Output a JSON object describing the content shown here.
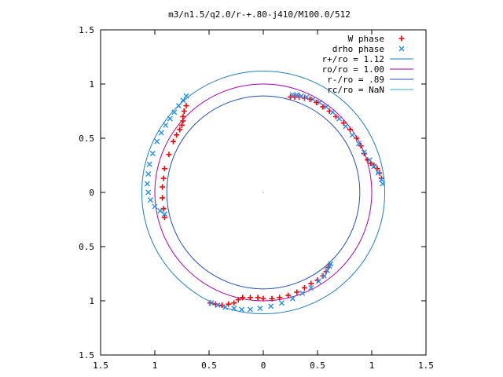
{
  "chart_data": {
    "type": "scatter",
    "title": "m3/n1.5/q2.0/r-+.80-j410/M100.0/512",
    "xlabel": "",
    "ylabel": "",
    "xlim": [
      -1.5,
      1.5
    ],
    "ylim": [
      -1.5,
      1.5
    ],
    "x_ticks": [
      -1.5,
      -1,
      -0.5,
      0,
      0.5,
      1,
      1.5
    ],
    "x_tick_labels": [
      "1.5",
      "1",
      "0.5",
      "0",
      "0.5",
      "1",
      "1.5"
    ],
    "y_ticks": [
      1.5,
      1,
      0.5,
      0,
      -0.5,
      -1,
      -1.5
    ],
    "y_tick_labels": [
      "1.5",
      "1",
      "0.5",
      "0",
      "0.5",
      "1",
      "1.5"
    ],
    "grid": false,
    "legend_position": "top-right",
    "legend": [
      {
        "label": "W phase",
        "marker": "+",
        "color": "#ff0000"
      },
      {
        "label": "drho phase",
        "marker": "x",
        "color": "#1e90ff"
      },
      {
        "label": "r+/ro = 1.12",
        "marker": "line",
        "color": "#1f7fbf"
      },
      {
        "label": "ro/ro = 1.00",
        "marker": "line",
        "color": "#b000b0"
      },
      {
        "label": "r-/ro = .89",
        "marker": "line",
        "color": "#1f4fbf"
      },
      {
        "label": "rc/ro = NaN",
        "marker": "line",
        "color": "#2fb0c0"
      }
    ],
    "circles": [
      {
        "name": "r+/ro = 1.12",
        "radius": 1.12,
        "color": "#1f7fbf"
      },
      {
        "name": "ro/ro = 1.00",
        "radius": 1.0,
        "color": "#b000b0"
      },
      {
        "name": "r-/ro = .89",
        "radius": 0.89,
        "color": "#1f4fbf"
      }
    ],
    "series": [
      {
        "name": "W phase",
        "color": "#ff0000",
        "points": [
          [
            -0.91,
            -0.23
          ],
          [
            -0.92,
            -0.15
          ],
          [
            -0.93,
            -0.05
          ],
          [
            -0.93,
            0.05
          ],
          [
            -0.92,
            0.13
          ],
          [
            -0.91,
            0.22
          ],
          [
            -0.87,
            0.35
          ],
          [
            -0.83,
            0.47
          ],
          [
            -0.8,
            0.53
          ],
          [
            -0.77,
            0.58
          ],
          [
            -0.75,
            0.62
          ],
          [
            -0.74,
            0.66
          ],
          [
            -0.74,
            0.7
          ],
          [
            -0.73,
            0.75
          ],
          [
            -0.71,
            0.8
          ],
          [
            0.25,
            0.88
          ],
          [
            0.29,
            0.88
          ],
          [
            0.33,
            0.88
          ],
          [
            0.38,
            0.87
          ],
          [
            0.43,
            0.86
          ],
          [
            0.49,
            0.83
          ],
          [
            0.55,
            0.79
          ],
          [
            0.61,
            0.75
          ],
          [
            0.67,
            0.7
          ],
          [
            0.74,
            0.64
          ],
          [
            0.8,
            0.58
          ],
          [
            0.86,
            0.5
          ],
          [
            0.9,
            0.43
          ],
          [
            0.93,
            0.36
          ],
          [
            0.96,
            0.3
          ],
          [
            0.99,
            0.27
          ],
          [
            1.02,
            0.25
          ],
          [
            1.05,
            0.22
          ],
          [
            1.07,
            0.18
          ],
          [
            1.09,
            0.13
          ],
          [
            -0.49,
            -1.02
          ],
          [
            -0.44,
            -1.03
          ],
          [
            -0.38,
            -1.04
          ],
          [
            -0.32,
            -1.03
          ],
          [
            -0.27,
            -1.02
          ],
          [
            -0.23,
            -0.99
          ],
          [
            -0.19,
            -0.97
          ],
          [
            -0.12,
            -0.97
          ],
          [
            -0.05,
            -0.97
          ],
          [
            0.0,
            -0.98
          ],
          [
            0.08,
            -0.98
          ],
          [
            0.15,
            -0.97
          ],
          [
            0.23,
            -0.95
          ],
          [
            0.31,
            -0.92
          ],
          [
            0.38,
            -0.88
          ],
          [
            0.44,
            -0.84
          ],
          [
            0.5,
            -0.81
          ],
          [
            0.55,
            -0.77
          ],
          [
            0.58,
            -0.73
          ],
          [
            0.6,
            -0.69
          ],
          [
            0.61,
            -0.67
          ]
        ]
      },
      {
        "name": "drho phase",
        "color": "#1e90ff",
        "points": [
          [
            -0.91,
            -0.2
          ],
          [
            -0.95,
            -0.17
          ],
          [
            -1.0,
            -0.13
          ],
          [
            -1.04,
            -0.07
          ],
          [
            -1.06,
            0.0
          ],
          [
            -1.07,
            0.08
          ],
          [
            -1.06,
            0.17
          ],
          [
            -1.05,
            0.26
          ],
          [
            -1.02,
            0.36
          ],
          [
            -0.98,
            0.47
          ],
          [
            -0.94,
            0.55
          ],
          [
            -0.9,
            0.62
          ],
          [
            -0.86,
            0.68
          ],
          [
            -0.82,
            0.74
          ],
          [
            -0.78,
            0.8
          ],
          [
            -0.74,
            0.85
          ],
          [
            -0.71,
            0.89
          ],
          [
            0.27,
            0.9
          ],
          [
            0.31,
            0.9
          ],
          [
            0.35,
            0.89
          ],
          [
            0.4,
            0.88
          ],
          [
            0.46,
            0.86
          ],
          [
            0.52,
            0.83
          ],
          [
            0.58,
            0.79
          ],
          [
            0.64,
            0.74
          ],
          [
            0.7,
            0.68
          ],
          [
            0.76,
            0.61
          ],
          [
            0.82,
            0.53
          ],
          [
            0.88,
            0.45
          ],
          [
            0.93,
            0.37
          ],
          [
            0.98,
            0.3
          ],
          [
            1.02,
            0.24
          ],
          [
            1.06,
            0.18
          ],
          [
            1.09,
            0.12
          ],
          [
            1.1,
            0.08
          ],
          [
            -0.48,
            -1.02
          ],
          [
            -0.42,
            -1.04
          ],
          [
            -0.35,
            -1.06
          ],
          [
            -0.27,
            -1.07
          ],
          [
            -0.2,
            -1.08
          ],
          [
            -0.12,
            -1.08
          ],
          [
            -0.03,
            -1.07
          ],
          [
            0.07,
            -1.05
          ],
          [
            0.17,
            -1.02
          ],
          [
            0.27,
            -0.98
          ],
          [
            0.36,
            -0.93
          ],
          [
            0.44,
            -0.88
          ],
          [
            0.51,
            -0.82
          ],
          [
            0.56,
            -0.77
          ],
          [
            0.59,
            -0.72
          ],
          [
            0.61,
            -0.68
          ],
          [
            0.62,
            -0.66
          ]
        ]
      }
    ]
  }
}
